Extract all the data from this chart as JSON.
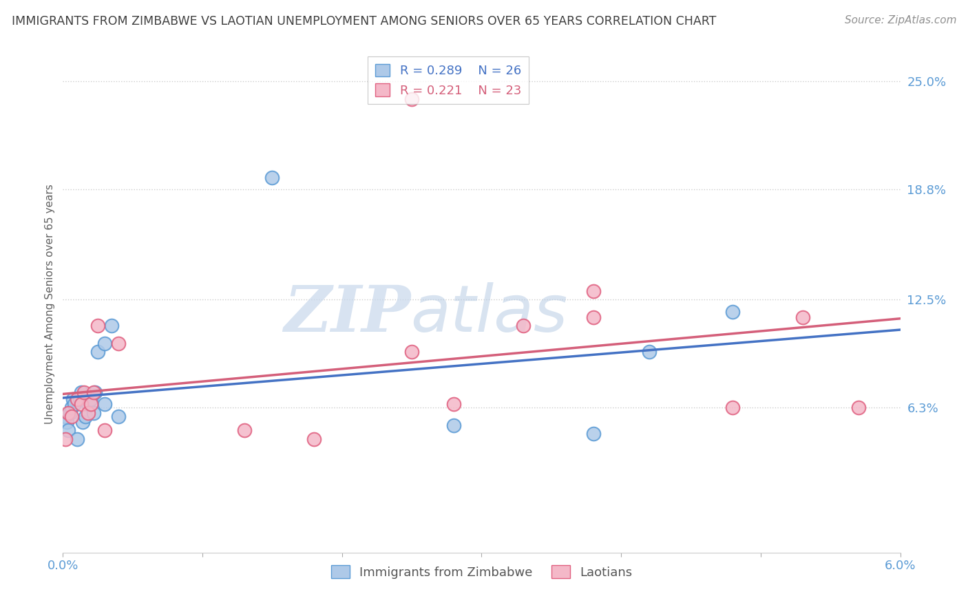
{
  "title": "IMMIGRANTS FROM ZIMBABWE VS LAOTIAN UNEMPLOYMENT AMONG SENIORS OVER 65 YEARS CORRELATION CHART",
  "source": "Source: ZipAtlas.com",
  "ylabel": "Unemployment Among Seniors over 65 years",
  "xlim": [
    0.0,
    0.06
  ],
  "ylim": [
    -0.02,
    0.265
  ],
  "xticks": [
    0.0,
    0.01,
    0.02,
    0.03,
    0.04,
    0.05,
    0.06
  ],
  "xticklabels": [
    "0.0%",
    "",
    "",
    "",
    "",
    "",
    "6.0%"
  ],
  "yticks_right": [
    0.063,
    0.125,
    0.188,
    0.25
  ],
  "yticks_right_labels": [
    "6.3%",
    "12.5%",
    "18.8%",
    "25.0%"
  ],
  "blue_color": "#aec9e8",
  "blue_edge_color": "#5b9bd5",
  "pink_color": "#f4b8c8",
  "pink_edge_color": "#e06080",
  "blue_line_color": "#4472c4",
  "pink_line_color": "#d45f7a",
  "legend_blue_R": "0.289",
  "legend_blue_N": "26",
  "legend_pink_R": "0.221",
  "legend_pink_N": "23",
  "legend_label_blue": "Immigrants from Zimbabwe",
  "legend_label_pink": "Laotians",
  "watermark_zip": "ZIP",
  "watermark_atlas": "atlas",
  "blue_x": [
    0.0002,
    0.0003,
    0.0004,
    0.0005,
    0.0006,
    0.0007,
    0.0008,
    0.001,
    0.0012,
    0.0013,
    0.0014,
    0.0016,
    0.0018,
    0.002,
    0.0022,
    0.0023,
    0.0025,
    0.003,
    0.003,
    0.0035,
    0.004,
    0.015,
    0.028,
    0.038,
    0.048,
    0.042
  ],
  "blue_y": [
    0.058,
    0.055,
    0.05,
    0.06,
    0.063,
    0.068,
    0.065,
    0.045,
    0.068,
    0.072,
    0.055,
    0.058,
    0.065,
    0.068,
    0.06,
    0.072,
    0.095,
    0.065,
    0.1,
    0.11,
    0.058,
    0.195,
    0.053,
    0.048,
    0.118,
    0.095
  ],
  "pink_x": [
    0.0002,
    0.0004,
    0.0006,
    0.001,
    0.0013,
    0.0015,
    0.0018,
    0.002,
    0.0022,
    0.0025,
    0.003,
    0.004,
    0.013,
    0.018,
    0.025,
    0.028,
    0.033,
    0.038,
    0.048,
    0.053,
    0.057,
    0.025,
    0.038
  ],
  "pink_y": [
    0.045,
    0.06,
    0.058,
    0.068,
    0.065,
    0.072,
    0.06,
    0.065,
    0.072,
    0.11,
    0.05,
    0.1,
    0.05,
    0.045,
    0.24,
    0.065,
    0.11,
    0.115,
    0.063,
    0.115,
    0.063,
    0.095,
    0.13
  ],
  "grid_color": "#cccccc",
  "background_color": "#ffffff",
  "title_color": "#404040",
  "axis_color": "#5b9bd5",
  "ylabel_color": "#606060"
}
